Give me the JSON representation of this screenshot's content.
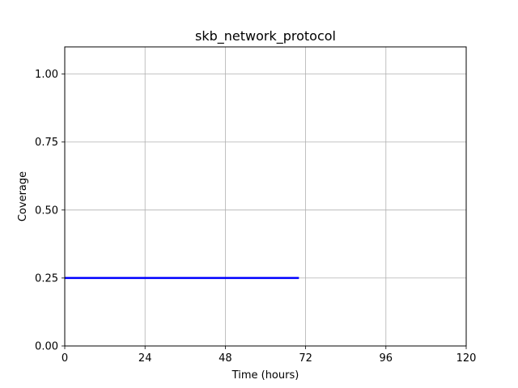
{
  "chart_data": {
    "type": "line",
    "title": "skb_network_protocol",
    "xlabel": "Time (hours)",
    "ylabel": "Coverage",
    "xlim": [
      0,
      120
    ],
    "ylim": [
      0,
      1.1
    ],
    "xticks": [
      0,
      24,
      48,
      72,
      96,
      120
    ],
    "xtick_labels": [
      "0",
      "24",
      "48",
      "72",
      "96",
      "120"
    ],
    "yticks": [
      0,
      0.25,
      0.5,
      0.75,
      1.0
    ],
    "ytick_labels": [
      "0.00",
      "0.25",
      "0.50",
      "0.75",
      "1.00"
    ],
    "grid": true,
    "series": [
      {
        "color": "#0000ff",
        "x": [
          0,
          70
        ],
        "y": [
          0.25,
          0.25
        ]
      }
    ]
  }
}
